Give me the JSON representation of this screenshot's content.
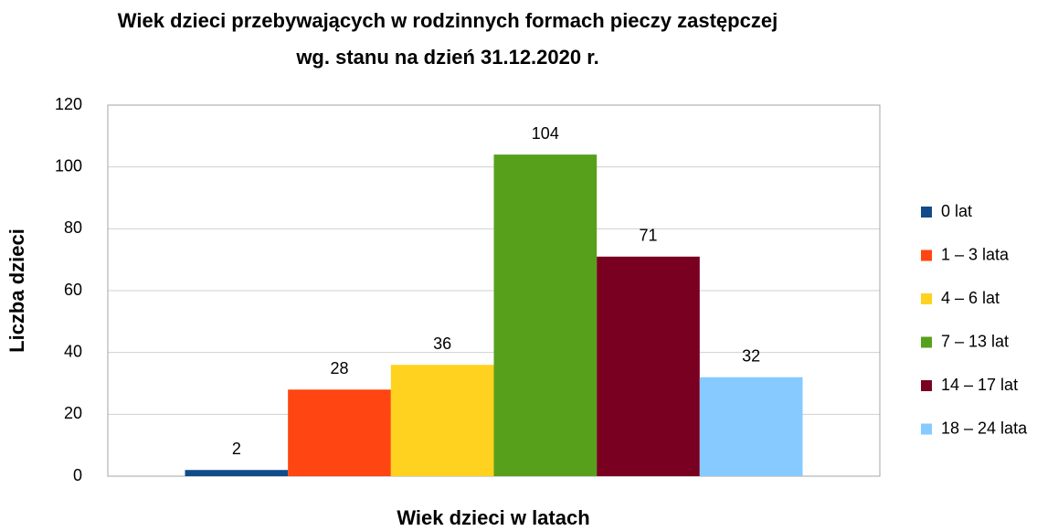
{
  "chart_data": {
    "type": "bar",
    "title": [
      "Wiek dzieci przebywających w rodzinnych formach pieczy zastępczej",
      "wg. stanu na dzień 31.12.2020 r."
    ],
    "xlabel": "Wiek dzieci w latach",
    "ylabel": "Liczba dzieci",
    "categories": [
      null
    ],
    "series": [
      {
        "name": "0 lat",
        "color": "#114b8a",
        "values": [
          2
        ]
      },
      {
        "name": "1 – 3 lata",
        "color": "#ff4511",
        "values": [
          28
        ]
      },
      {
        "name": "4 – 6 lat",
        "color": "#ffd21f",
        "values": [
          36
        ]
      },
      {
        "name": "7 – 13 lat",
        "color": "#57a01c",
        "values": [
          104
        ]
      },
      {
        "name": "14 – 17 lat",
        "color": "#7a0022",
        "values": [
          71
        ]
      },
      {
        "name": "18 – 24 lata",
        "color": "#87caff",
        "values": [
          32
        ]
      }
    ],
    "ylim": [
      0,
      120
    ],
    "yticks": [
      0,
      20,
      40,
      60,
      80,
      100,
      120
    ],
    "grid": true,
    "legend": "right"
  }
}
